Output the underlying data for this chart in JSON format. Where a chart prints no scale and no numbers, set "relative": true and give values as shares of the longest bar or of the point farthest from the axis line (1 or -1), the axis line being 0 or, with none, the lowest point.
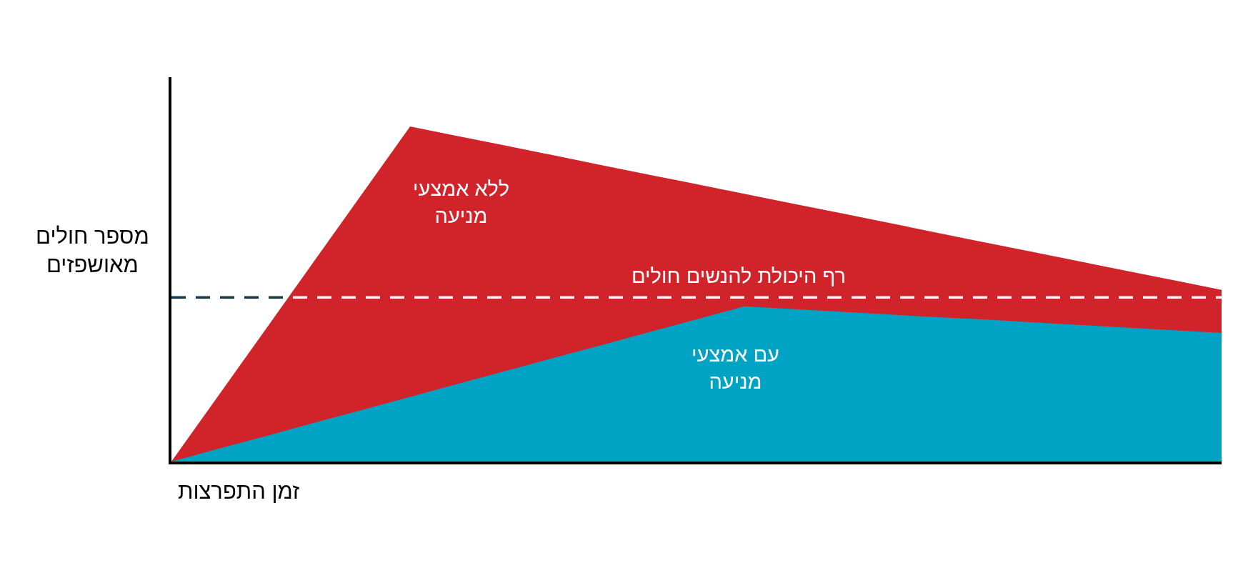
{
  "chart_data": {
    "type": "area",
    "ylabel": "מספר חולים מאושפזים",
    "xlabel": "זמן התפרצות",
    "categories": [
      null,
      null,
      null,
      null,
      null,
      null,
      null,
      null,
      null,
      null,
      null,
      null,
      null,
      null,
      null,
      null,
      null,
      null,
      null,
      null,
      null,
      null,
      null
    ],
    "series": [
      {
        "name": "ללא אמצעי מניעה",
        "color": "#d1232a",
        "values": [
          0,
          0.2,
          0.4,
          0.6,
          0.8,
          1,
          0.971,
          0.943,
          0.914,
          0.885,
          0.856,
          0.828,
          0.799,
          0.77,
          0.742,
          0.713,
          0.684,
          0.655,
          0.627,
          0.598,
          0.569,
          0.541,
          0.512
        ]
      },
      {
        "name": "עם אמצעי מניעה",
        "color": "#00a3c4",
        "values": [
          0,
          0.039,
          0.077,
          0.116,
          0.154,
          0.193,
          0.232,
          0.27,
          0.309,
          0.347,
          0.386,
          0.424,
          0.463,
          0.455,
          0.447,
          0.439,
          0.431,
          0.424,
          0.416,
          0.408,
          0.4,
          0.392,
          0.384
        ]
      }
    ],
    "relative": true,
    "ref_lines": [
      {
        "axis": "y",
        "value": 0.49,
        "label": "רף היכולת להנשים חולים",
        "color": "#17384c",
        "line_style": "dashed"
      }
    ]
  }
}
